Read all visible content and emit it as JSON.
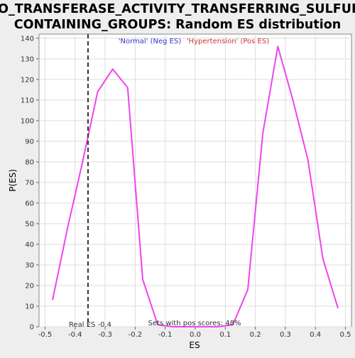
{
  "chart_data": {
    "type": "line",
    "title_line1": "GO_TRANSFERASE_ACTIVITY_TRANSFERRING_SULFUR_",
    "title_line2": "CONTAINING_GROUPS: Random ES distribution",
    "xlabel": "ES",
    "ylabel": "P(ES)",
    "xlim": [
      -0.52,
      0.52
    ],
    "ylim": [
      0,
      142
    ],
    "x_ticks": [
      -0.5,
      -0.4,
      -0.3,
      -0.2,
      -0.1,
      0.0,
      0.1,
      0.2,
      0.3,
      0.4,
      0.5
    ],
    "x_tick_labels": [
      "-0.5",
      "-0.4",
      "-0.3",
      "-0.2",
      "-0.1",
      "0.0",
      "0.1",
      "0.2",
      "0.3",
      "0.4",
      "0.5"
    ],
    "y_ticks": [
      0,
      10,
      20,
      30,
      40,
      50,
      60,
      70,
      80,
      90,
      100,
      110,
      120,
      130,
      140
    ],
    "grid": true,
    "legend": {
      "neg_label": "'Normal' (Neg ES)",
      "pos_label": "'Hypertension' (Pos ES)",
      "neg_color": "#3333cc",
      "pos_color": "#cc3333",
      "placement": "top-center"
    },
    "series": [
      {
        "color": "#ee44ee",
        "x": [
          -0.475,
          -0.425,
          -0.375,
          -0.325,
          -0.275,
          -0.225,
          -0.175,
          -0.125,
          -0.075,
          -0.025,
          0.025,
          0.075,
          0.125,
          0.175,
          0.225,
          0.275,
          0.325,
          0.375,
          0.425,
          0.475
        ],
        "y": [
          13,
          48,
          80,
          114,
          125,
          116,
          23,
          1,
          0,
          0,
          0,
          0,
          1,
          18,
          94,
          136,
          110,
          81,
          33,
          9
        ]
      }
    ],
    "real_es": {
      "value": -0.357,
      "label": "Real ES -0.4",
      "color": "#333333"
    },
    "pos_scores_label": "Sets with pos scores: 48%"
  }
}
